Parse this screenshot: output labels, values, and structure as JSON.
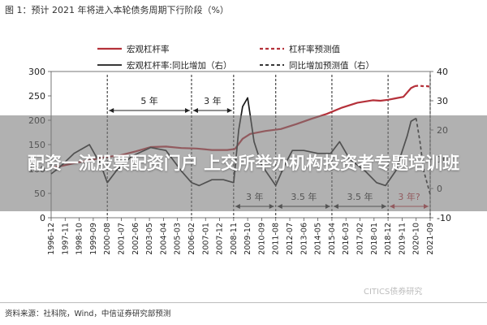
{
  "figure_title": "图 1：预计 2021 年将进入本轮债务周期下行阶段（%）",
  "overlay_text": "配资一流股票配资门户 上交所举办机构投资者专题培训班",
  "watermark": "CITICS债券研究",
  "source": "资料来源：社科院，Wind，中信证券研究部预测",
  "colors": {
    "leverage": "#b5313a",
    "growth": "#1b1b1b",
    "phase_line": "#222222",
    "grid_frame": "#555555"
  },
  "chart_data": {
    "type": "line",
    "x_range": [
      "1996-12",
      "2021-09"
    ],
    "x_tick_labels": [
      "1996-12",
      "1997-11",
      "1998-10",
      "1999-09",
      "2000-08",
      "2001-07",
      "2002-06",
      "2003-05",
      "2004-04",
      "2005-03",
      "2006-02",
      "2007-01",
      "2007-12",
      "2008-11",
      "2009-10",
      "2010-09",
      "2011-08",
      "2012-07",
      "2013-06",
      "2014-05",
      "2015-04",
      "2016-03",
      "2017-02",
      "2018-01",
      "2018-12",
      "2019-11",
      "2020-10",
      "2021-09"
    ],
    "y_left": {
      "range": [
        0,
        300
      ],
      "ticks": [
        0,
        50,
        100,
        150,
        200,
        250,
        300
      ]
    },
    "y_right": {
      "range": [
        -10,
        40
      ],
      "ticks": [
        -10,
        0,
        10,
        20,
        30,
        40
      ]
    },
    "legend": [
      {
        "label": "宏观杠杆率",
        "style": "solid",
        "color": "#b5313a"
      },
      {
        "label": "杠杆率预测值",
        "style": "dashed",
        "color": "#b5313a"
      },
      {
        "label": "宏观杠杆率:同比增加（右）",
        "style": "solid",
        "color": "#1b1b1b"
      },
      {
        "label": "同比增加预测值（右）",
        "style": "dashed",
        "color": "#1b1b1b"
      }
    ],
    "series": [
      {
        "name": "宏观杠杆率",
        "axis": "left",
        "points": [
          [
            "1996-12",
            103
          ],
          [
            "1997-06",
            105
          ],
          [
            "1998-06",
            112
          ],
          [
            "1999-06",
            118
          ],
          [
            "2000-06",
            124
          ],
          [
            "2001-06",
            128
          ],
          [
            "2002-06",
            136
          ],
          [
            "2003-06",
            145
          ],
          [
            "2004-06",
            146
          ],
          [
            "2005-06",
            143
          ],
          [
            "2006-06",
            142
          ],
          [
            "2007-06",
            139
          ],
          [
            "2008-06",
            139
          ],
          [
            "2008-12",
            141
          ],
          [
            "2009-06",
            162
          ],
          [
            "2009-12",
            172
          ],
          [
            "2010-12",
            178
          ],
          [
            "2011-12",
            182
          ],
          [
            "2012-12",
            192
          ],
          [
            "2013-12",
            203
          ],
          [
            "2014-12",
            213
          ],
          [
            "2015-12",
            226
          ],
          [
            "2016-12",
            236
          ],
          [
            "2017-12",
            241
          ],
          [
            "2018-06",
            240
          ],
          [
            "2018-12",
            242
          ],
          [
            "2019-06",
            245
          ],
          [
            "2019-12",
            248
          ],
          [
            "2020-03",
            257
          ],
          [
            "2020-06",
            266
          ],
          [
            "2020-09",
            270
          ]
        ]
      },
      {
        "name": "杠杆率预测值",
        "axis": "left",
        "points": [
          [
            "2020-09",
            270
          ],
          [
            "2020-12",
            271
          ],
          [
            "2021-03",
            270
          ],
          [
            "2021-06",
            270
          ],
          [
            "2021-09",
            269
          ]
        ]
      },
      {
        "name": "宏观杠杆率:同比增加（右）",
        "axis": "right",
        "points": [
          [
            "1996-12",
            5
          ],
          [
            "1997-06",
            7
          ],
          [
            "1998-06",
            12
          ],
          [
            "1999-06",
            15
          ],
          [
            "2000-03",
            8
          ],
          [
            "2000-08",
            2
          ],
          [
            "2001-03",
            6
          ],
          [
            "2002-03",
            11
          ],
          [
            "2003-06",
            14
          ],
          [
            "2004-06",
            13
          ],
          [
            "2005-06",
            6
          ],
          [
            "2006-02",
            2
          ],
          [
            "2006-08",
            1
          ],
          [
            "2007-06",
            3
          ],
          [
            "2008-03",
            3
          ],
          [
            "2008-11",
            2
          ],
          [
            "2009-03",
            20
          ],
          [
            "2009-06",
            28
          ],
          [
            "2009-10",
            31
          ],
          [
            "2010-03",
            16
          ],
          [
            "2010-09",
            8
          ],
          [
            "2011-08",
            1
          ],
          [
            "2012-03",
            8
          ],
          [
            "2012-09",
            13
          ],
          [
            "2013-06",
            13
          ],
          [
            "2014-05",
            12
          ],
          [
            "2015-03",
            12
          ],
          [
            "2015-10",
            16
          ],
          [
            "2016-06",
            10
          ],
          [
            "2017-06",
            6
          ],
          [
            "2018-03",
            2
          ],
          [
            "2018-10",
            1
          ],
          [
            "2019-06",
            6
          ],
          [
            "2020-03",
            18
          ],
          [
            "2020-06",
            23
          ],
          [
            "2020-10",
            24
          ]
        ]
      },
      {
        "name": "同比增加预测值（右）",
        "axis": "right",
        "points": [
          [
            "2020-10",
            24
          ],
          [
            "2021-01",
            16
          ],
          [
            "2021-04",
            6
          ],
          [
            "2021-09",
            -2
          ]
        ]
      }
    ],
    "phase_dividers": [
      "2000-08",
      "2006-02",
      "2008-11",
      "2011-08",
      "2015-04",
      "2018-12",
      "2021-09"
    ],
    "phase_annotations": [
      {
        "label": "5 年",
        "from": "2000-08",
        "to": "2006-02",
        "row": "upper"
      },
      {
        "label": "3 年",
        "from": "2006-02",
        "to": "2008-11",
        "row": "upper"
      },
      {
        "label": "3 年",
        "from": "2008-11",
        "to": "2011-08",
        "row": "lower"
      },
      {
        "label": "3.5 年",
        "from": "2011-08",
        "to": "2015-04",
        "row": "lower"
      },
      {
        "label": "3.5 年",
        "from": "2015-04",
        "to": "2018-12",
        "row": "lower"
      },
      {
        "label": "3 年?",
        "from": "2018-12",
        "to": "2021-09",
        "row": "lower",
        "color": "#b5313a"
      }
    ]
  }
}
